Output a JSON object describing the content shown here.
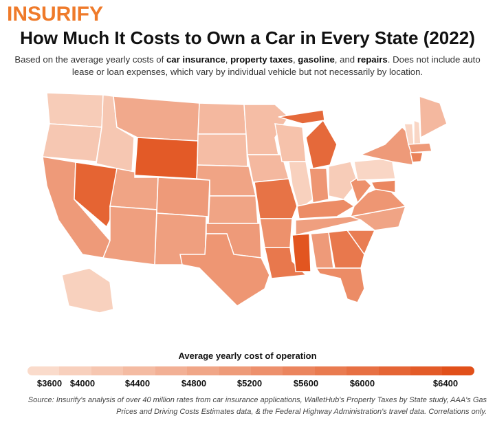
{
  "brand": "INSURIFY",
  "title": "How Much It Costs to Own a Car in Every State (2022)",
  "subtitle": {
    "t1": "Based on the average yearly costs of ",
    "b1": "car insurance",
    "t2": ", ",
    "b2": "property taxes",
    "t3": ", ",
    "b3": "gasoline",
    "t4": ", and ",
    "b4": "repairs",
    "t5": ". Does not include auto lease or loan expenses, which vary by individual vehicle but not necessarily by location."
  },
  "legend": {
    "title": "Average yearly cost of operation",
    "ticks": [
      "$3600",
      "$4000",
      "$4400",
      "$4800",
      "$5200",
      "$5600",
      "$6000",
      "$6400"
    ],
    "min": 3600,
    "max": 6400,
    "color_low": "#fadbcb",
    "color_high": "#e1501a"
  },
  "source": "Source: Insurify's analysis of over 40 million rates from car insurance applications, WalletHub's Property Taxes by State study, AAA's Gas Prices and Driving Costs Estimates data, & the Federal Highway Administration's travel data. Correlations only.",
  "chart_data": {
    "type": "choropleth",
    "unit": "USD per year (estimated from fill)",
    "states": {
      "WA": 3900,
      "OR": 4000,
      "CA": 4900,
      "NV": 6000,
      "ID": 4000,
      "MT": 4600,
      "WY": 6200,
      "UT": 4700,
      "AZ": 4800,
      "CO": 4900,
      "NM": 4800,
      "ND": 4300,
      "SD": 4200,
      "NE": 4700,
      "KS": 4700,
      "OK": 4900,
      "TX": 5000,
      "MN": 4200,
      "IA": 4300,
      "MO": 5700,
      "AR": 5100,
      "LA": 5600,
      "WI": 4100,
      "IL": 3800,
      "MI": 5900,
      "IN": 5000,
      "OH": 3900,
      "KY": 5200,
      "TN": 4800,
      "MS": 6300,
      "AL": 4900,
      "GA": 5600,
      "FL": 5200,
      "SC": 5500,
      "NC": 4700,
      "VA": 5000,
      "WV": 5100,
      "PA": 3700,
      "NY": 4900,
      "MD": 5300,
      "VT": 3700,
      "NH": 3700,
      "ME": 4300,
      "MA": 4900,
      "CT": 5400,
      "AK": 3800
    }
  }
}
